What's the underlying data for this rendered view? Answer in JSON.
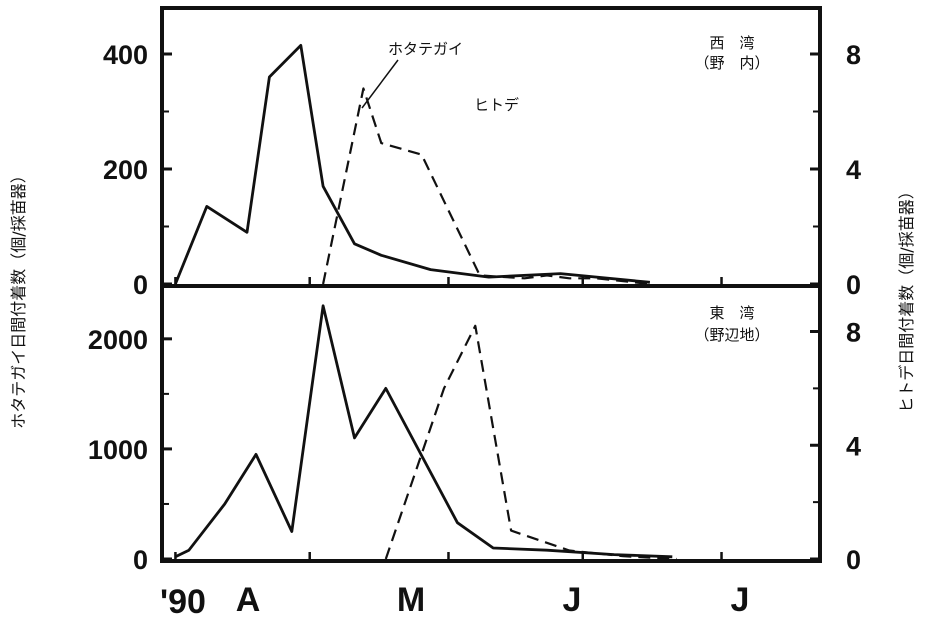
{
  "axes": {
    "left_label": "ホタテガイ日間付着数（個/採苗器）",
    "right_label": "ヒトデ日間付着数（個/採苗器）",
    "year_label": "'90",
    "months": [
      "A",
      "M",
      "J",
      "J"
    ]
  },
  "chart_data": [
    {
      "type": "line",
      "panel": "top",
      "title": "西　湾",
      "subtitle": "（野　内）",
      "x_unit": "days since Apr 1",
      "xlim": [
        -3,
        144
      ],
      "left_ylim": [
        0,
        480
      ],
      "right_ylim": [
        0,
        9.6
      ],
      "left_ticks": [
        "400",
        "200",
        "0"
      ],
      "left_tick_values": [
        400,
        200,
        0
      ],
      "right_ticks": [
        "8",
        "4",
        "0"
      ],
      "right_tick_values": [
        8,
        4,
        0
      ],
      "series": [
        {
          "name": "ホタテガイ",
          "axis": "left",
          "style": "solid",
          "x": [
            0,
            7,
            16,
            21,
            28,
            33,
            40,
            46,
            57,
            70,
            86,
            106
          ],
          "y": [
            0,
            135,
            90,
            360,
            415,
            170,
            70,
            50,
            25,
            12,
            18,
            3
          ]
        },
        {
          "name": "ヒトデ",
          "axis": "right",
          "style": "dashed",
          "x": [
            33,
            42,
            46,
            55,
            68,
            78,
            83,
            88,
            94,
            106
          ],
          "y": [
            0,
            6.8,
            4.9,
            4.5,
            0.3,
            0.2,
            0.3,
            0.2,
            0.2,
            0
          ]
        }
      ]
    },
    {
      "type": "line",
      "panel": "bottom",
      "title": "東　湾",
      "subtitle": "（野辺地）",
      "x_unit": "days since Apr 1",
      "xlim": [
        -3,
        144
      ],
      "left_ylim": [
        0,
        2480
      ],
      "right_ylim": [
        0,
        9.6
      ],
      "left_ticks": [
        "2000",
        "1000",
        "0"
      ],
      "left_tick_values": [
        2000,
        1000,
        0
      ],
      "right_ticks": [
        "8",
        "4",
        "0"
      ],
      "right_tick_values": [
        8,
        4,
        0
      ],
      "series": [
        {
          "name": "ホタテガイ",
          "axis": "left",
          "style": "solid",
          "x": [
            0,
            3,
            11,
            18,
            26,
            33,
            40,
            47,
            63,
            71,
            83,
            98,
            111
          ],
          "y": [
            20,
            80,
            500,
            950,
            250,
            2300,
            1100,
            1550,
            330,
            100,
            80,
            40,
            20
          ]
        },
        {
          "name": "ヒトデ",
          "axis": "right",
          "style": "dashed",
          "x": [
            47,
            60,
            67,
            75,
            88,
            100,
            112
          ],
          "y": [
            0,
            6,
            8.2,
            1,
            0.3,
            0.1,
            0
          ]
        }
      ]
    }
  ],
  "colors": {
    "ink": "#111111",
    "paper": "#ffffff"
  }
}
